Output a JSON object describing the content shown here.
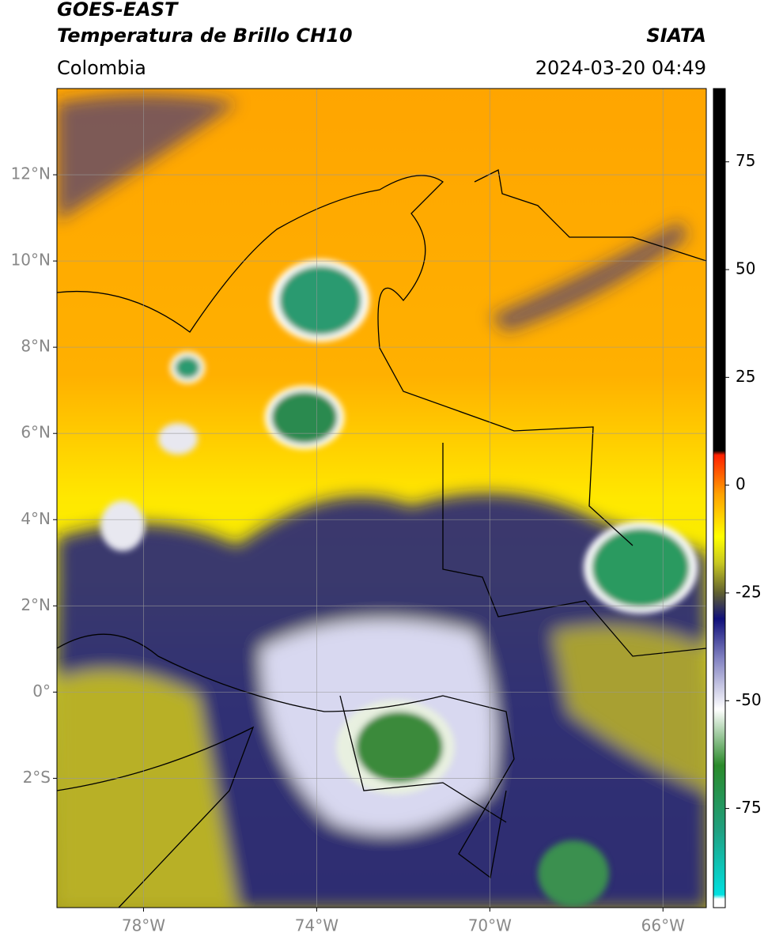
{
  "header": {
    "title": "GOES-EAST",
    "subtitle": "Temperatura de Brillo CH10",
    "source": "SIATA",
    "region": "Colombia",
    "timestamp": "2024-03-20 04:49"
  },
  "map": {
    "xlim": [
      -80,
      -65
    ],
    "ylim": [
      -5,
      14
    ],
    "grid": true,
    "xticks": [
      {
        "value": -78,
        "label": "78°W"
      },
      {
        "value": -74,
        "label": "74°W"
      },
      {
        "value": -70,
        "label": "70°W"
      },
      {
        "value": -66,
        "label": "66°W"
      }
    ],
    "yticks": [
      {
        "value": 12,
        "label": "12°N"
      },
      {
        "value": 10,
        "label": "10°N"
      },
      {
        "value": 8,
        "label": "8°N"
      },
      {
        "value": 6,
        "label": "6°N"
      },
      {
        "value": 4,
        "label": "4°N"
      },
      {
        "value": 2,
        "label": "2°N"
      },
      {
        "value": 0,
        "label": "0°"
      },
      {
        "value": -2,
        "label": "2°S"
      }
    ]
  },
  "colorbar": {
    "ylim": [
      -98,
      92
    ],
    "ticks": [
      75,
      50,
      25,
      0,
      -25,
      -50,
      -75
    ],
    "colorscale": [
      {
        "value": -98,
        "color": "#ffffff"
      },
      {
        "value": -96,
        "color": "#ffffff"
      },
      {
        "value": -95,
        "color": "#00e0e0"
      },
      {
        "value": -80,
        "color": "#20a080"
      },
      {
        "value": -65,
        "color": "#2a8a2a"
      },
      {
        "value": -52,
        "color": "#ffffff"
      },
      {
        "value": -40,
        "color": "#8080c0"
      },
      {
        "value": -31,
        "color": "#10107a"
      },
      {
        "value": -25,
        "color": "#606030"
      },
      {
        "value": -18,
        "color": "#c8c820"
      },
      {
        "value": -12,
        "color": "#ffff00"
      },
      {
        "value": -2,
        "color": "#ffa000"
      },
      {
        "value": 7,
        "color": "#ff2000"
      },
      {
        "value": 8,
        "color": "#000000"
      },
      {
        "value": 92,
        "color": "#000000"
      }
    ]
  }
}
